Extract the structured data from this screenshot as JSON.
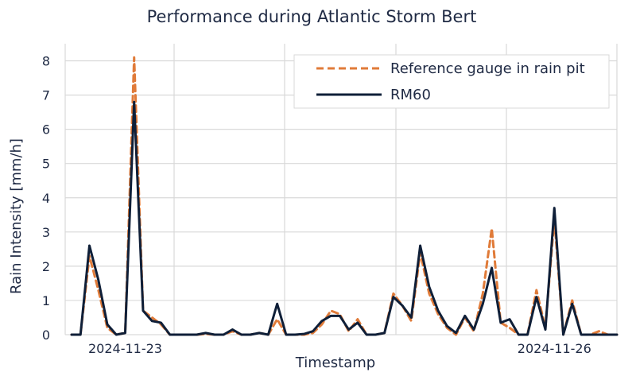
{
  "chart_data": {
    "type": "line",
    "title": "Performance during Atlantic Storm Bert",
    "xlabel": "Timestamp",
    "ylabel": "Rain Intensity [mm/h]",
    "ylim": [
      0,
      8.5
    ],
    "yticks": [
      0,
      1,
      2,
      3,
      4,
      5,
      6,
      7,
      8
    ],
    "xtick_labels": [
      {
        "label": "2024-11-23",
        "index": 6
      },
      {
        "label": "2024-11-26",
        "index": 54
      }
    ],
    "grid": true,
    "legend_position": "top-right",
    "series": [
      {
        "name": "Reference gauge in rain pit",
        "style": "dashed",
        "color": "#e07b39",
        "values": [
          0,
          0,
          2.3,
          1.3,
          0.2,
          0,
          0.05,
          8.1,
          0.7,
          0.5,
          0.3,
          0,
          0,
          0,
          0,
          0.02,
          0,
          0,
          0.1,
          0,
          0,
          0.05,
          0,
          0.45,
          0,
          0,
          0,
          0.05,
          0.3,
          0.7,
          0.6,
          0.1,
          0.45,
          0,
          0,
          0.05,
          1.2,
          0.85,
          0.4,
          2.4,
          1.2,
          0.6,
          0.2,
          0,
          0.5,
          0.1,
          1.2,
          3.1,
          0.35,
          0.2,
          0,
          0,
          1.3,
          0.2,
          3.4,
          0,
          1,
          0,
          0,
          0.1,
          0,
          0
        ]
      },
      {
        "name": "RM60",
        "style": "solid",
        "color": "#0f1f38",
        "values": [
          0,
          0,
          2.6,
          1.6,
          0.3,
          0,
          0.05,
          6.8,
          0.7,
          0.4,
          0.35,
          0,
          0,
          0,
          0,
          0.05,
          0,
          0,
          0.15,
          0,
          0,
          0.05,
          0,
          0.9,
          0,
          0,
          0.02,
          0.1,
          0.4,
          0.55,
          0.55,
          0.15,
          0.35,
          0,
          0,
          0.05,
          1.1,
          0.85,
          0.5,
          2.6,
          1.4,
          0.7,
          0.25,
          0.05,
          0.55,
          0.15,
          0.9,
          1.95,
          0.35,
          0.45,
          0,
          0,
          1.1,
          0.15,
          3.7,
          0,
          0.9,
          0,
          0,
          0,
          0,
          0
        ]
      }
    ]
  }
}
